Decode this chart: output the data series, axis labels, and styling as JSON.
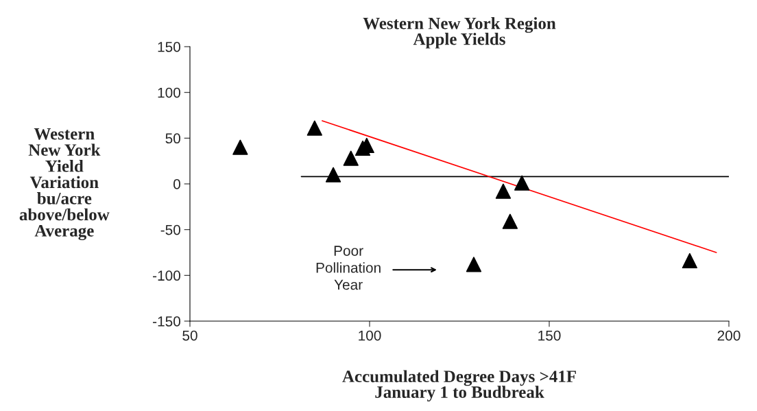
{
  "chart_data": {
    "type": "scatter",
    "title": "Western New York Region\nApple Yields",
    "xlabel": "Accumulated Degree Days >41F\nJanuary 1 to Budbreak",
    "ylabel": "Western\nNew York\nYield\nVariation\nbu/acre\nabove/below\nAverage",
    "xlim": [
      50,
      200
    ],
    "xticks": [
      50,
      100,
      150,
      200
    ],
    "ylim": [
      -150,
      150
    ],
    "yticks": [
      -150,
      -100,
      -50,
      0,
      50,
      100,
      150
    ],
    "grid": false,
    "legend": false,
    "series": [
      {
        "marker": "triangle",
        "color": "#000000",
        "x": [
          64,
          84.7,
          89.9,
          94.8,
          98.1,
          99.2,
          129,
          137.2,
          139.1,
          142.4,
          189.1
        ],
        "values": [
          40,
          61,
          10,
          28,
          39,
          42,
          -88,
          -8,
          -41,
          1,
          -84
        ]
      },
      {
        "type": "line",
        "color": "#000000",
        "x": [
          81,
          200
        ],
        "values": [
          8,
          8
        ]
      },
      {
        "type": "line",
        "color": "#ff0000",
        "x": [
          86.8,
          196.5
        ],
        "values": [
          69,
          -75
        ]
      }
    ],
    "annotations": [
      "Poor\nPollination\nYear"
    ]
  }
}
